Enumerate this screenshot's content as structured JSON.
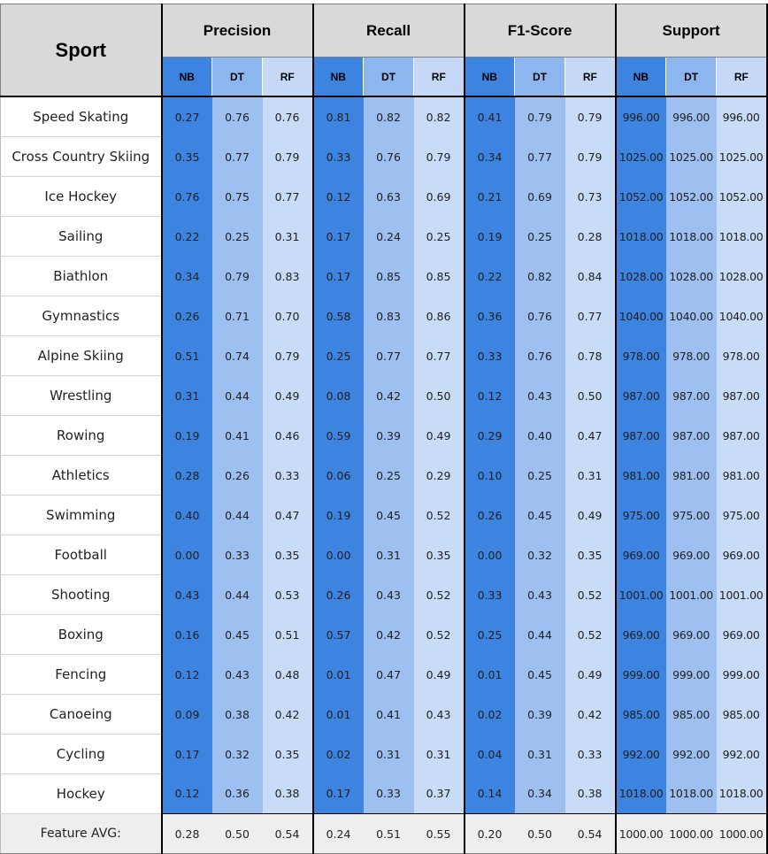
{
  "table": {
    "corner_label": "Sport",
    "groups": [
      "Precision",
      "Recall",
      "F1-Score",
      "Support"
    ],
    "sub_labels": [
      "NB",
      "DT",
      "RF",
      "NB",
      "DT",
      "RF",
      "NB",
      "DT",
      "RF",
      "NB",
      "DT",
      "RF"
    ],
    "colors": {
      "nb": "#3c84e0",
      "dt": "#9dc0f1",
      "rf": "#c8dcf7",
      "header": "#d9d9d9",
      "avg_row": "#eeeeee"
    },
    "rows": [
      {
        "sport": "Speed Skating",
        "values": [
          "0.27",
          "0.76",
          "0.76",
          "0.81",
          "0.82",
          "0.82",
          "0.41",
          "0.79",
          "0.79",
          "996.00",
          "996.00",
          "996.00"
        ]
      },
      {
        "sport": "Cross Country Skiing",
        "values": [
          "0.35",
          "0.77",
          "0.79",
          "0.33",
          "0.76",
          "0.79",
          "0.34",
          "0.77",
          "0.79",
          "1025.00",
          "1025.00",
          "1025.00"
        ]
      },
      {
        "sport": "Ice Hockey",
        "values": [
          "0.76",
          "0.75",
          "0.77",
          "0.12",
          "0.63",
          "0.69",
          "0.21",
          "0.69",
          "0.73",
          "1052.00",
          "1052.00",
          "1052.00"
        ]
      },
      {
        "sport": "Sailing",
        "values": [
          "0.22",
          "0.25",
          "0.31",
          "0.17",
          "0.24",
          "0.25",
          "0.19",
          "0.25",
          "0.28",
          "1018.00",
          "1018.00",
          "1018.00"
        ]
      },
      {
        "sport": "Biathlon",
        "values": [
          "0.34",
          "0.79",
          "0.83",
          "0.17",
          "0.85",
          "0.85",
          "0.22",
          "0.82",
          "0.84",
          "1028.00",
          "1028.00",
          "1028.00"
        ]
      },
      {
        "sport": "Gymnastics",
        "values": [
          "0.26",
          "0.71",
          "0.70",
          "0.58",
          "0.83",
          "0.86",
          "0.36",
          "0.76",
          "0.77",
          "1040.00",
          "1040.00",
          "1040.00"
        ]
      },
      {
        "sport": "Alpine Skiing",
        "values": [
          "0.51",
          "0.74",
          "0.79",
          "0.25",
          "0.77",
          "0.77",
          "0.33",
          "0.76",
          "0.78",
          "978.00",
          "978.00",
          "978.00"
        ]
      },
      {
        "sport": "Wrestling",
        "values": [
          "0.31",
          "0.44",
          "0.49",
          "0.08",
          "0.42",
          "0.50",
          "0.12",
          "0.43",
          "0.50",
          "987.00",
          "987.00",
          "987.00"
        ]
      },
      {
        "sport": "Rowing",
        "values": [
          "0.19",
          "0.41",
          "0.46",
          "0.59",
          "0.39",
          "0.49",
          "0.29",
          "0.40",
          "0.47",
          "987.00",
          "987.00",
          "987.00"
        ]
      },
      {
        "sport": "Athletics",
        "values": [
          "0.28",
          "0.26",
          "0.33",
          "0.06",
          "0.25",
          "0.29",
          "0.10",
          "0.25",
          "0.31",
          "981.00",
          "981.00",
          "981.00"
        ]
      },
      {
        "sport": "Swimming",
        "values": [
          "0.40",
          "0.44",
          "0.47",
          "0.19",
          "0.45",
          "0.52",
          "0.26",
          "0.45",
          "0.49",
          "975.00",
          "975.00",
          "975.00"
        ]
      },
      {
        "sport": "Football",
        "values": [
          "0.00",
          "0.33",
          "0.35",
          "0.00",
          "0.31",
          "0.35",
          "0.00",
          "0.32",
          "0.35",
          "969.00",
          "969.00",
          "969.00"
        ]
      },
      {
        "sport": "Shooting",
        "values": [
          "0.43",
          "0.44",
          "0.53",
          "0.26",
          "0.43",
          "0.52",
          "0.33",
          "0.43",
          "0.52",
          "1001.00",
          "1001.00",
          "1001.00"
        ]
      },
      {
        "sport": "Boxing",
        "values": [
          "0.16",
          "0.45",
          "0.51",
          "0.57",
          "0.42",
          "0.52",
          "0.25",
          "0.44",
          "0.52",
          "969.00",
          "969.00",
          "969.00"
        ]
      },
      {
        "sport": "Fencing",
        "values": [
          "0.12",
          "0.43",
          "0.48",
          "0.01",
          "0.47",
          "0.49",
          "0.01",
          "0.45",
          "0.49",
          "999.00",
          "999.00",
          "999.00"
        ]
      },
      {
        "sport": "Canoeing",
        "values": [
          "0.09",
          "0.38",
          "0.42",
          "0.01",
          "0.41",
          "0.43",
          "0.02",
          "0.39",
          "0.42",
          "985.00",
          "985.00",
          "985.00"
        ]
      },
      {
        "sport": "Cycling",
        "values": [
          "0.17",
          "0.32",
          "0.35",
          "0.02",
          "0.31",
          "0.31",
          "0.04",
          "0.31",
          "0.33",
          "992.00",
          "992.00",
          "992.00"
        ]
      },
      {
        "sport": "Hockey",
        "values": [
          "0.12",
          "0.36",
          "0.38",
          "0.17",
          "0.33",
          "0.37",
          "0.14",
          "0.34",
          "0.38",
          "1018.00",
          "1018.00",
          "1018.00"
        ]
      }
    ],
    "average": {
      "label": "Feature AVG:",
      "values": [
        "0.28",
        "0.50",
        "0.54",
        "0.24",
        "0.51",
        "0.55",
        "0.20",
        "0.50",
        "0.54",
        "1000.00",
        "1000.00",
        "1000.00"
      ]
    }
  }
}
